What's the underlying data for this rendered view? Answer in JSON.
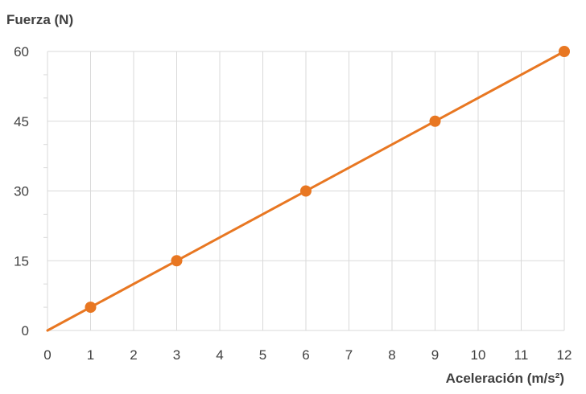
{
  "chart_data": {
    "type": "line",
    "title": "",
    "ylabel": "Fuerza (N)",
    "xlabel": "Aceleración (m/s²)",
    "xlim": [
      0,
      12
    ],
    "ylim": [
      0,
      60
    ],
    "x_ticks": [
      "0",
      "1",
      "2",
      "3",
      "4",
      "5",
      "6",
      "7",
      "8",
      "9",
      "10",
      "11",
      "12"
    ],
    "y_ticks": [
      "0",
      "15",
      "30",
      "45",
      "60"
    ],
    "grid": true,
    "legend": false,
    "series": [
      {
        "color": "#E87722",
        "line": [
          [
            0,
            0
          ],
          [
            12,
            60
          ]
        ],
        "points": [
          [
            1,
            5
          ],
          [
            3,
            15
          ],
          [
            6,
            30
          ],
          [
            9,
            45
          ],
          [
            12,
            60
          ]
        ]
      }
    ]
  }
}
